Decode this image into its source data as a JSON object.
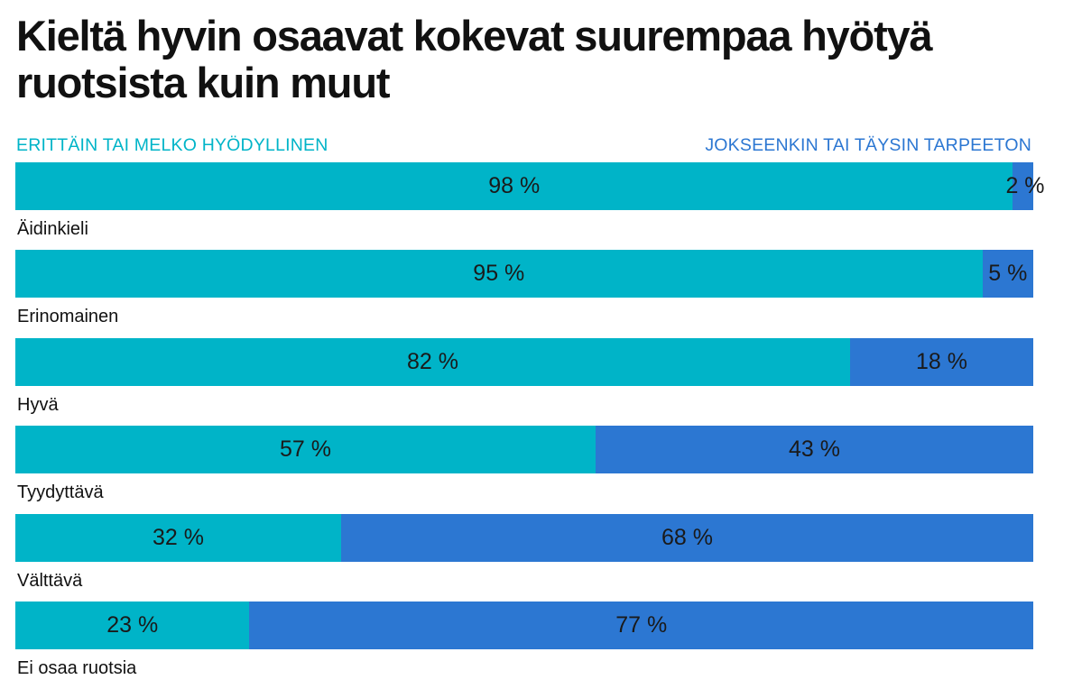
{
  "title": "Kieltä hyvin osaavat kokevat suurempaa hyötyä ruotsista kuin muut",
  "colors": {
    "useful": "#00b4c8",
    "useless": "#2c77d2"
  },
  "chart_data": {
    "type": "bar",
    "orientation": "horizontal",
    "stacked": true,
    "percent_stacked": true,
    "title": "Kieltä hyvin osaavat kokevat suurempaa hyötyä ruotsista kuin muut",
    "xlabel": "",
    "ylabel": "",
    "xlim": [
      0,
      100
    ],
    "grid": false,
    "legend_position": "top",
    "categories": [
      "Äidinkieli",
      "Erinomainen",
      "Hyvä",
      "Tyydyttävä",
      "Välttävä",
      "Ei osaa ruotsia"
    ],
    "series": [
      {
        "name": "ERITTÄIN TAI MELKO HYÖDYLLINEN",
        "color": "#00b4c8",
        "values": [
          98,
          95,
          82,
          57,
          32,
          23
        ],
        "labels": [
          "98 %",
          "95 %",
          "82 %",
          "57 %",
          "32 %",
          "23 %"
        ]
      },
      {
        "name": "JOKSEENKIN TAI TÄYSIN TARPEETON",
        "color": "#2c77d2",
        "values": [
          2,
          5,
          18,
          43,
          68,
          77
        ],
        "labels": [
          "2 %",
          "5 %",
          "18 %",
          "43 %",
          "68 %",
          "77 %"
        ]
      }
    ]
  }
}
